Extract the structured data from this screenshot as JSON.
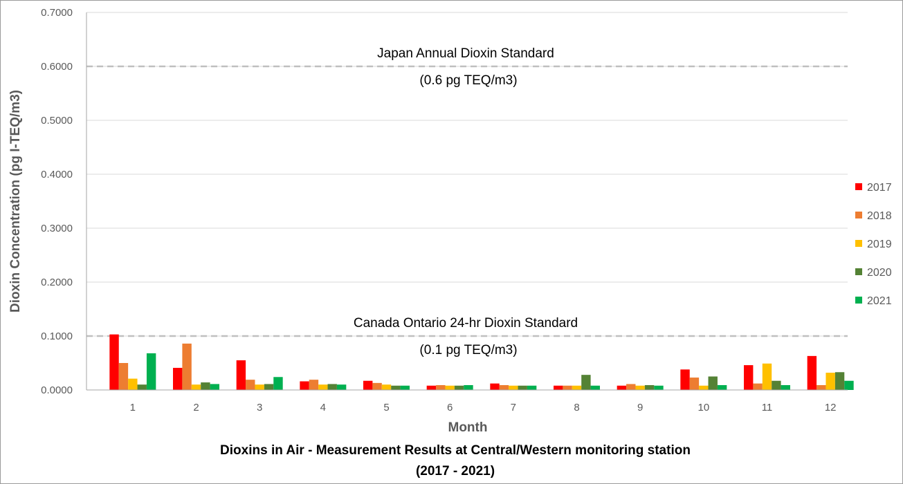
{
  "chart_data": {
    "type": "bar",
    "title": "Dioxins in Air - Measurement Results at Central/Western monitoring station",
    "subtitle": "(2017 - 2021)",
    "xlabel": "Month",
    "ylabel": "Dioxin Concentration (pg I-TEQ/m3)",
    "ylim": [
      0,
      0.7
    ],
    "y_ticks": [
      "0.0000",
      "0.1000",
      "0.2000",
      "0.3000",
      "0.4000",
      "0.5000",
      "0.6000",
      "0.7000"
    ],
    "y_tick_values": [
      0,
      0.1,
      0.2,
      0.3,
      0.4,
      0.5,
      0.6,
      0.7
    ],
    "grid": true,
    "legend_position": "right",
    "categories": [
      "1",
      "2",
      "3",
      "4",
      "5",
      "6",
      "7",
      "8",
      "9",
      "10",
      "11",
      "12"
    ],
    "series": [
      {
        "name": "2017",
        "color": "#ff0000",
        "values": [
          0.103,
          0.041,
          0.055,
          0.016,
          0.017,
          0.008,
          0.012,
          0.008,
          0.008,
          0.038,
          0.046,
          0.063
        ]
      },
      {
        "name": "2018",
        "color": "#ed7d31",
        "values": [
          0.05,
          0.086,
          0.019,
          0.019,
          0.013,
          0.009,
          0.009,
          0.008,
          0.011,
          0.023,
          0.012,
          0.009
        ]
      },
      {
        "name": "2019",
        "color": "#ffc000",
        "values": [
          0.021,
          0.01,
          0.01,
          0.01,
          0.01,
          0.008,
          0.008,
          0.008,
          0.008,
          0.008,
          0.049,
          0.032
        ]
      },
      {
        "name": "2020",
        "color": "#548235",
        "values": [
          0.01,
          0.014,
          0.011,
          0.011,
          0.008,
          0.008,
          0.008,
          0.028,
          0.009,
          0.025,
          0.017,
          0.033
        ]
      },
      {
        "name": "2021",
        "color": "#00b050",
        "values": [
          0.068,
          0.011,
          0.024,
          0.01,
          0.008,
          0.009,
          0.008,
          0.008,
          0.008,
          0.009,
          0.009,
          0.017
        ]
      }
    ],
    "reference_lines": [
      {
        "value": 0.6,
        "label": "Japan Annual Dioxin Standard",
        "sublabel": "(0.6 pg TEQ/m3)"
      },
      {
        "value": 0.1,
        "label": "Canada Ontario 24-hr Dioxin Standard",
        "sublabel": "(0.1 pg TEQ/m3)"
      }
    ],
    "colors": {
      "grid": "#d9d9d9",
      "axis": "#a6a6a6",
      "reference_line": "#bfbfbf"
    }
  }
}
